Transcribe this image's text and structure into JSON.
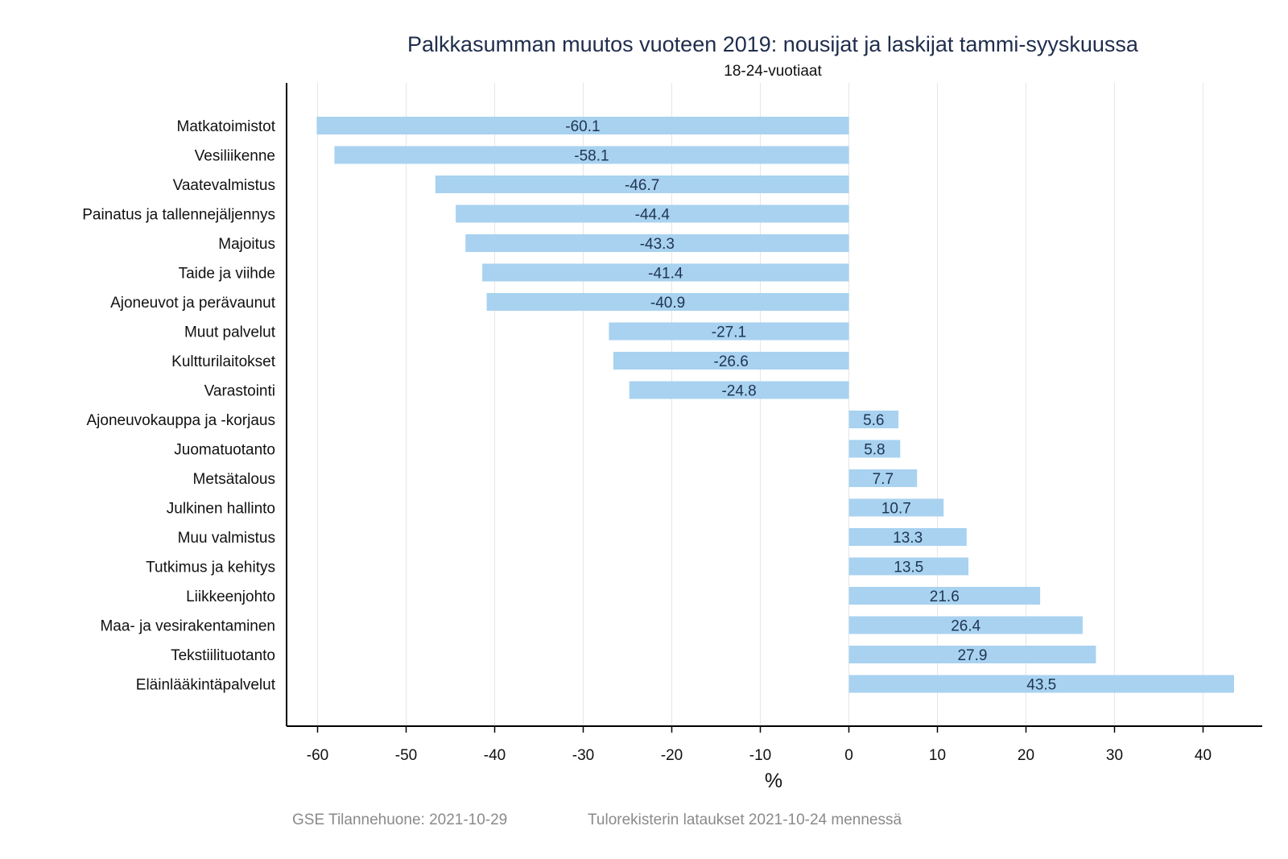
{
  "chart_data": {
    "type": "bar",
    "orientation": "horizontal",
    "title": "Palkkasumman muutos vuoteen 2019: nousijat ja laskijat tammi-syyskuussa",
    "subtitle": "18-24-vuotiaat",
    "xlabel": "%",
    "ylabel": "",
    "xlim": [
      -63.5,
      46.5
    ],
    "xticks": [
      -60,
      -50,
      -40,
      -30,
      -20,
      -10,
      0,
      10,
      20,
      30,
      40
    ],
    "xtick_labels": [
      "-60",
      "-50",
      "-40",
      "-30",
      "-20",
      "-10",
      "0",
      "10",
      "20",
      "30",
      "40"
    ],
    "grid": true,
    "legend": "none",
    "bar_color": "#a8d2f0",
    "categories": [
      "Matkatoimistot",
      "Vesiliikenne",
      "Vaatevalmistus",
      "Painatus ja tallennejäljennys",
      "Majoitus",
      "Taide ja viihde",
      "Ajoneuvot ja perävaunut",
      "Muut palvelut",
      "Kultturilaitokset",
      "Varastointi",
      "Ajoneuvokauppa ja -korjaus",
      "Juomatuotanto",
      "Metsätalous",
      "Julkinen hallinto",
      "Muu valmistus",
      "Tutkimus ja kehitys",
      "Liikkeenjohto",
      "Maa- ja vesirakentaminen",
      "Tekstiilituotanto",
      "Eläinlääkintäpalvelut"
    ],
    "values": [
      -60.1,
      -58.1,
      -46.7,
      -44.4,
      -43.3,
      -41.4,
      -40.9,
      -27.1,
      -26.6,
      -24.8,
      5.6,
      5.8,
      7.7,
      10.7,
      13.3,
      13.5,
      21.6,
      26.4,
      27.9,
      43.5
    ],
    "value_labels": [
      "-60.1",
      "-58.1",
      "-46.7",
      "-44.4",
      "-43.3",
      "-41.4",
      "-40.9",
      "-27.1",
      "-26.6",
      "-24.8",
      "5.6",
      "5.8",
      "7.7",
      "10.7",
      "13.3",
      "13.5",
      "21.6",
      "26.4",
      "27.9",
      "43.5"
    ]
  },
  "footer": {
    "source": "GSE Tilannehuone: 2021-10-29",
    "note": "Tulorekisterin lataukset 2021-10-24 mennessä"
  }
}
